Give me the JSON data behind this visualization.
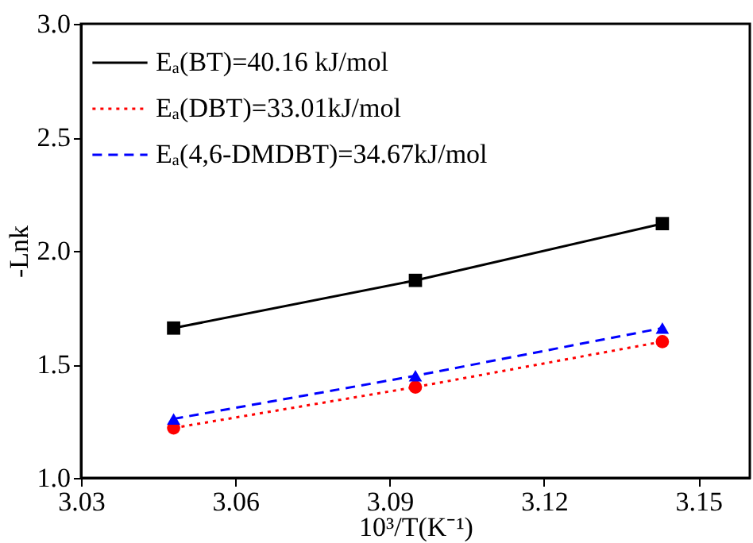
{
  "chart_data": {
    "type": "line",
    "xlabel": "10³/T(K⁻¹)",
    "ylabel": "-Lnk",
    "x": [
      3.048,
      3.095,
      3.143
    ],
    "series": [
      {
        "name": "Eₐ(BT)=40.16 kJ/mol",
        "color": "#000000",
        "values": [
          1.66,
          1.87,
          2.12
        ],
        "marker": "square",
        "line_style": "solid"
      },
      {
        "name": "Eₐ(DBT)=33.01kJ/mol",
        "color": "#ff0000",
        "values": [
          1.22,
          1.4,
          1.6
        ],
        "marker": "circle",
        "line_style": "dotted"
      },
      {
        "name": "Eₐ(4,6-DMDBT)=34.67kJ/mol",
        "color": "#0000ff",
        "values": [
          1.26,
          1.45,
          1.66
        ],
        "marker": "triangle",
        "line_style": "dashed"
      }
    ],
    "xlim": [
      3.03,
      3.16
    ],
    "xticks": [
      3.03,
      3.06,
      3.09,
      3.12,
      3.15
    ],
    "ylim": [
      1.0,
      3.0
    ],
    "yticks": [
      {
        "value": 1,
        "label": "1.0"
      },
      1.5,
      {
        "value": 2,
        "label": "2.0"
      },
      2.5,
      {
        "value": 3,
        "label": "3.0"
      }
    ],
    "grid": false,
    "legend": "top left"
  }
}
